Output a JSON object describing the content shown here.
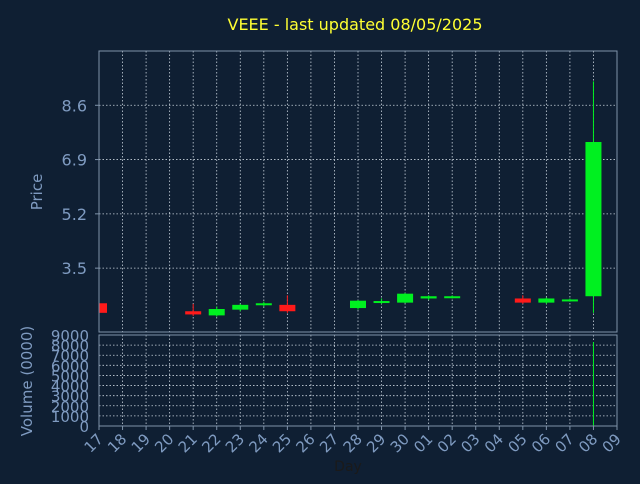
{
  "colors": {
    "background": "#0f1f33",
    "frame": "#7f93aa",
    "grid": "#c8d2dc",
    "title": "#ffff33",
    "label": "#7f9bc1",
    "up": "#00f020",
    "down": "#ff1a1a"
  },
  "chart_data": [
    {
      "type": "candlestick",
      "title": "VEEE - last updated 08/05/2025",
      "ylabel": "Price",
      "ylim": [
        1.5,
        10.3
      ],
      "yticks": [
        3.5,
        5.2,
        6.9,
        8.6
      ],
      "ytick_labels": [
        "3.5",
        "5.2",
        "6.9",
        "8.6"
      ],
      "grid": true,
      "candles": [
        {
          "day": "17",
          "open": 2.4,
          "high": 2.45,
          "low": 2.05,
          "close": 2.1
        },
        {
          "day": "21",
          "open": 2.15,
          "high": 2.38,
          "low": 2.0,
          "close": 2.05
        },
        {
          "day": "22",
          "open": 2.02,
          "high": 2.3,
          "low": 1.98,
          "close": 2.22
        },
        {
          "day": "23",
          "open": 2.2,
          "high": 2.38,
          "low": 2.15,
          "close": 2.35
        },
        {
          "day": "24",
          "open": 2.38,
          "high": 2.45,
          "low": 2.3,
          "close": 2.4
        },
        {
          "day": "25",
          "open": 2.35,
          "high": 2.65,
          "low": 2.1,
          "close": 2.15
        },
        {
          "day": "28",
          "open": 2.25,
          "high": 2.5,
          "low": 2.2,
          "close": 2.48
        },
        {
          "day": "29",
          "open": 2.42,
          "high": 2.55,
          "low": 2.38,
          "close": 2.47
        },
        {
          "day": "30",
          "open": 2.42,
          "high": 2.72,
          "low": 2.4,
          "close": 2.7
        },
        {
          "day": "01",
          "open": 2.55,
          "high": 2.65,
          "low": 2.5,
          "close": 2.62
        },
        {
          "day": "02",
          "open": 2.58,
          "high": 2.65,
          "low": 2.55,
          "close": 2.62
        },
        {
          "day": "05",
          "open": 2.55,
          "high": 2.65,
          "low": 2.38,
          "close": 2.42
        },
        {
          "day": "06",
          "open": 2.42,
          "high": 2.58,
          "low": 2.38,
          "close": 2.55
        },
        {
          "day": "07",
          "open": 2.47,
          "high": 2.55,
          "low": 2.45,
          "close": 2.52
        },
        {
          "day": "08",
          "open": 2.62,
          "high": 9.35,
          "low": 2.1,
          "close": 7.45
        }
      ]
    },
    {
      "type": "bar",
      "ylabel": "Volume (0000)",
      "xlabel": "Day",
      "ylim": [
        0,
        9000
      ],
      "yticks": [
        0,
        1000,
        2000,
        3000,
        4000,
        5000,
        6000,
        7000,
        8000,
        9000
      ],
      "ytick_labels": [
        "0",
        "1000",
        "2000",
        "3000",
        "4000",
        "5000",
        "6000",
        "7000",
        "8000",
        "9000"
      ],
      "categories": [
        "17",
        "18",
        "19",
        "20",
        "21",
        "22",
        "23",
        "24",
        "25",
        "26",
        "27",
        "28",
        "29",
        "30",
        "01",
        "02",
        "03",
        "04",
        "05",
        "06",
        "07",
        "08",
        "09"
      ],
      "values": [
        5,
        0,
        0,
        0,
        3,
        4,
        3,
        2,
        6,
        0,
        0,
        3,
        2,
        4,
        3,
        2,
        0,
        0,
        3,
        4,
        2,
        8300,
        0
      ],
      "grid": true
    }
  ]
}
